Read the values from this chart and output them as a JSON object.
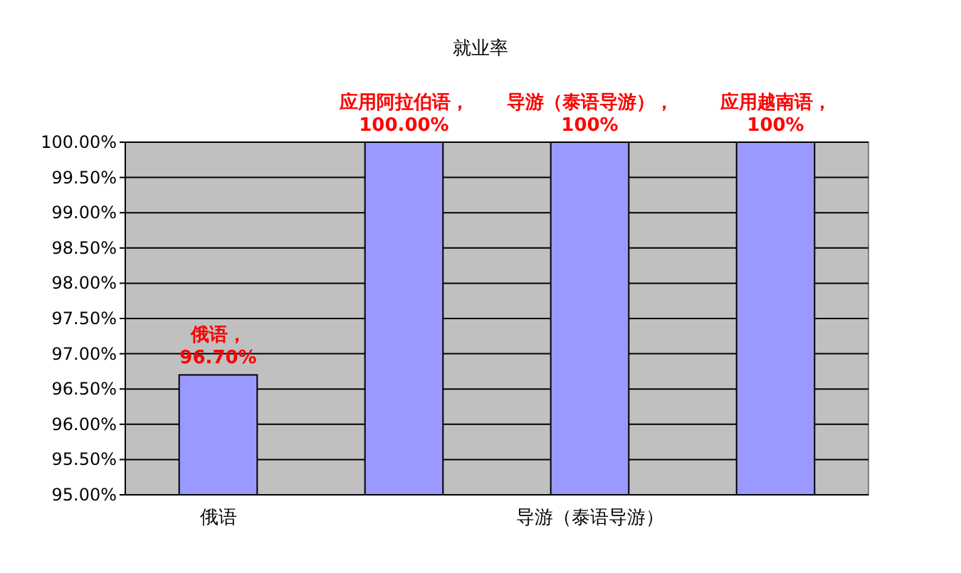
{
  "chart_data": {
    "type": "bar",
    "title": "就业率",
    "categories": [
      "俄语",
      null,
      "导游（泰语导游）",
      null
    ],
    "values": [
      96.7,
      100,
      100,
      100
    ],
    "value_labels": [
      "俄语，96.70%",
      "应用阿拉伯语，100.00%",
      "导游（泰语导游），100%",
      "应用越南语，100%"
    ],
    "color": "#9999ff",
    "ylim": [
      95,
      100
    ],
    "yticks": [
      {
        "value": 95,
        "label": "95.00%"
      },
      {
        "value": 95.5,
        "label": "95.50%"
      },
      {
        "value": 96,
        "label": "96.00%"
      },
      {
        "value": 96.5,
        "label": "96.50%"
      },
      {
        "value": 97,
        "label": "97.00%"
      },
      {
        "value": 97.5,
        "label": "97.50%"
      },
      {
        "value": 98,
        "label": "98.00%"
      },
      {
        "value": 98.5,
        "label": "98.50%"
      },
      {
        "value": 99,
        "label": "99.00%"
      },
      {
        "value": 99.5,
        "label": "99.50%"
      },
      {
        "value": 100,
        "label": "100.00%"
      }
    ],
    "grid": "y"
  }
}
